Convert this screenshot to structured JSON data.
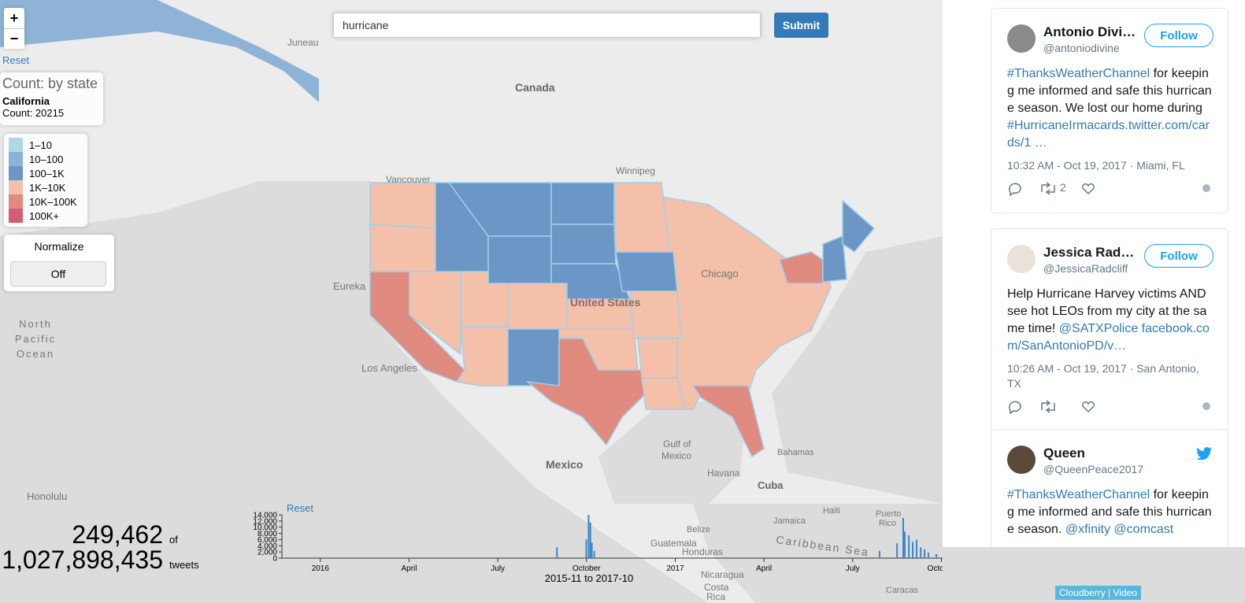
{
  "search": {
    "query": "hurricane",
    "button": "Submit"
  },
  "zoom": {
    "in": "+",
    "out": "−",
    "reset": "Reset"
  },
  "info": {
    "title": "Count: by state",
    "state": "California",
    "count": "Count: 20215"
  },
  "legend": [
    {
      "label": "1–10",
      "color": "#add8e6"
    },
    {
      "label": "10–100",
      "color": "#86b5d8"
    },
    {
      "label": "100–1K",
      "color": "#6b96c6"
    },
    {
      "label": "1K–10K",
      "color": "#f4c0aa"
    },
    {
      "label": "10K–100K",
      "color": "#e08a80"
    },
    {
      "label": "100K+",
      "color": "#d15f73"
    }
  ],
  "normalize": {
    "title": "Normalize",
    "state": "Off"
  },
  "map": {
    "labels": [
      "Juneau",
      "Canada",
      "Vancouver",
      "Winnipeg",
      "Eureka",
      "Los Angeles",
      "United States",
      "Chicago",
      "Gulf of",
      "Mexico",
      "Mexico",
      "Havana",
      "Cuba",
      "Bahamas",
      "Honolulu",
      "North",
      "Pacific",
      "Ocean",
      "Jamaica",
      "Haiti",
      "Puerto",
      "Rico",
      "Belize",
      "Guatemala",
      "Honduras",
      "Nicaragua",
      "Costa",
      "Rica",
      "Caribbean Sea",
      "Caracas"
    ]
  },
  "totals": {
    "count": "249,462",
    "of": "of",
    "total": "1,027,898,435",
    "unit": "tweets"
  },
  "time_reset": "Reset",
  "time_range": "2015-11 to 2017-10",
  "chart_data": {
    "type": "bar",
    "color": "#3f86c4",
    "x": [
      10.0,
      10.99,
      11.07,
      11.13,
      11.18,
      11.26,
      20.91,
      21.5,
      21.71,
      21.76,
      21.9,
      22.03,
      22.16,
      22.3,
      22.43,
      22.56,
      22.83,
      23.09
    ],
    "values": [
      3500,
      6000,
      14000,
      11500,
      5000,
      2300,
      2300,
      4800,
      13000,
      8600,
      7400,
      5300,
      6000,
      3500,
      2800,
      1800,
      1300,
      1000
    ],
    "xlim": [
      0.7,
      23.6
    ],
    "xticks": [
      {
        "value": 2,
        "label": "2016"
      },
      {
        "value": 5,
        "label": "April"
      },
      {
        "value": 8,
        "label": "July"
      },
      {
        "value": 11,
        "label": "October"
      },
      {
        "value": 14,
        "label": "2017"
      },
      {
        "value": 17,
        "label": "April"
      },
      {
        "value": 20,
        "label": "July"
      },
      {
        "value": 23,
        "label": "October"
      }
    ],
    "ylim": [
      0,
      14000
    ],
    "yticks": [
      0,
      {
        "value": 2000,
        "label": "2,000"
      },
      {
        "value": 4000,
        "label": "4,000"
      },
      {
        "value": 6000,
        "label": "6,000"
      },
      {
        "value": 8000,
        "label": "8,000"
      },
      {
        "value": 10000,
        "label": "10,000"
      },
      {
        "value": 12000,
        "label": "12,000"
      },
      {
        "value": 14000,
        "label": "14,000"
      }
    ]
  },
  "tweets": [
    {
      "name": "Antonio Divi…",
      "handle": "@antoniodivine",
      "follow": "Follow",
      "text": [
        {
          "text": "#ThanksWeatherChannel",
          "link": true
        },
        {
          "text": " for keeping me informed and safe this hurricane season. We lost our home during "
        },
        {
          "text": "#HurricaneIrmacards.twitter.com/cards/1 …",
          "link": true
        }
      ],
      "time": "10:32 AM - Oct 19, 2017 · Miami, FL",
      "retweets": "2"
    },
    {
      "name": "Jessica Rad…",
      "handle": "@JessicaRadcliff",
      "follow": "Follow",
      "text": [
        {
          "text": "Help Hurricane Harvey victims AND see hot LEOs from my city at the same time! "
        },
        {
          "text": "@SATXPolice",
          "link": true
        },
        {
          "text": " "
        },
        {
          "text": "facebook.com/SanAntonioPD/v…",
          "link": true
        }
      ],
      "time": "10:26 AM - Oct 19, 2017 · San Antonio, TX"
    },
    {
      "name": "Queen",
      "handle": "@QueenPeace2017",
      "text": [
        {
          "text": "#ThanksWeatherChannel",
          "link": true
        },
        {
          "text": " for keeping me informed and safe this hurricane season. "
        },
        {
          "text": "@xfinity",
          "link": true
        },
        {
          "text": " "
        },
        {
          "text": "@comcast",
          "link": true
        }
      ]
    }
  ],
  "footer": "Cloudberry | Video"
}
